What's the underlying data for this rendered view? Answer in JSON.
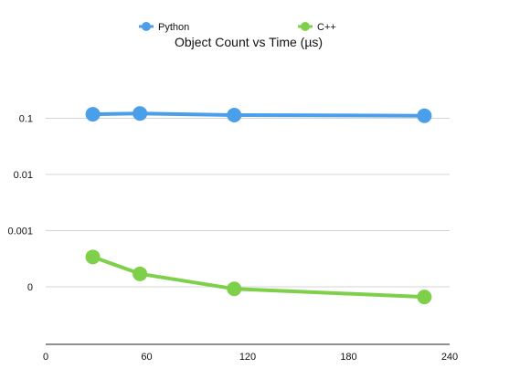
{
  "chart_data": {
    "type": "line",
    "title": "Object Count vs Time (µs)",
    "xlabel": "",
    "ylabel": "",
    "x_scale": "linear",
    "y_scale": "log",
    "xlim": [
      0,
      240
    ],
    "x_ticks": [
      0,
      60,
      120,
      180,
      240
    ],
    "x_tick_labels": [
      "0",
      "60",
      "120",
      "180",
      "240"
    ],
    "y_ticks": [
      0.1,
      0.01,
      0.001,
      0.0001
    ],
    "y_tick_labels": [
      "0.1",
      "0.01",
      "0.001",
      "0"
    ],
    "ylim": [
      1e-05,
      1
    ],
    "grid": true,
    "legend_position": "top",
    "series": [
      {
        "name": "Python",
        "color": "#4a9eea",
        "x": [
          28,
          56,
          112,
          225
        ],
        "y": [
          0.118,
          0.122,
          0.114,
          0.111
        ]
      },
      {
        "name": "C++",
        "color": "#7ed04b",
        "x": [
          28,
          56,
          112,
          225
        ],
        "y": [
          0.00034,
          0.00017,
          9.2e-05,
          6.6e-05
        ]
      }
    ]
  }
}
